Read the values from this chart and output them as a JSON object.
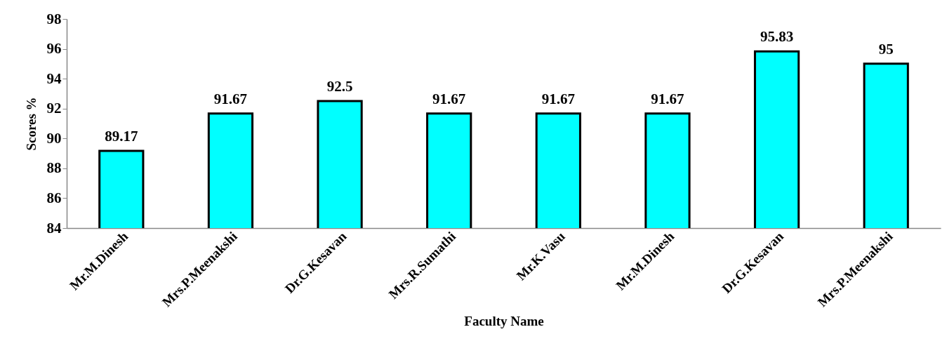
{
  "chart_data": {
    "type": "bar",
    "xlabel": "Faculty Name",
    "ylabel": "Scores %",
    "categories": [
      "Mr.M.Dinesh",
      "Mrs.P.Meenakshi",
      "Dr.G.Kesavan",
      "Mrs.R.Sumathi",
      "Mr.K.Vasu",
      "Mr.M.Dinesh",
      "Dr.G.Kesavan",
      "Mrs.P.Meenakshi"
    ],
    "values": [
      89.17,
      91.67,
      92.5,
      91.67,
      91.67,
      91.67,
      95.83,
      95
    ],
    "color": "#00ffff",
    "ylim": [
      84,
      98
    ],
    "yticks": [
      84,
      86,
      88,
      90,
      92,
      94,
      96,
      98
    ],
    "grid": false,
    "data_labels": true
  }
}
